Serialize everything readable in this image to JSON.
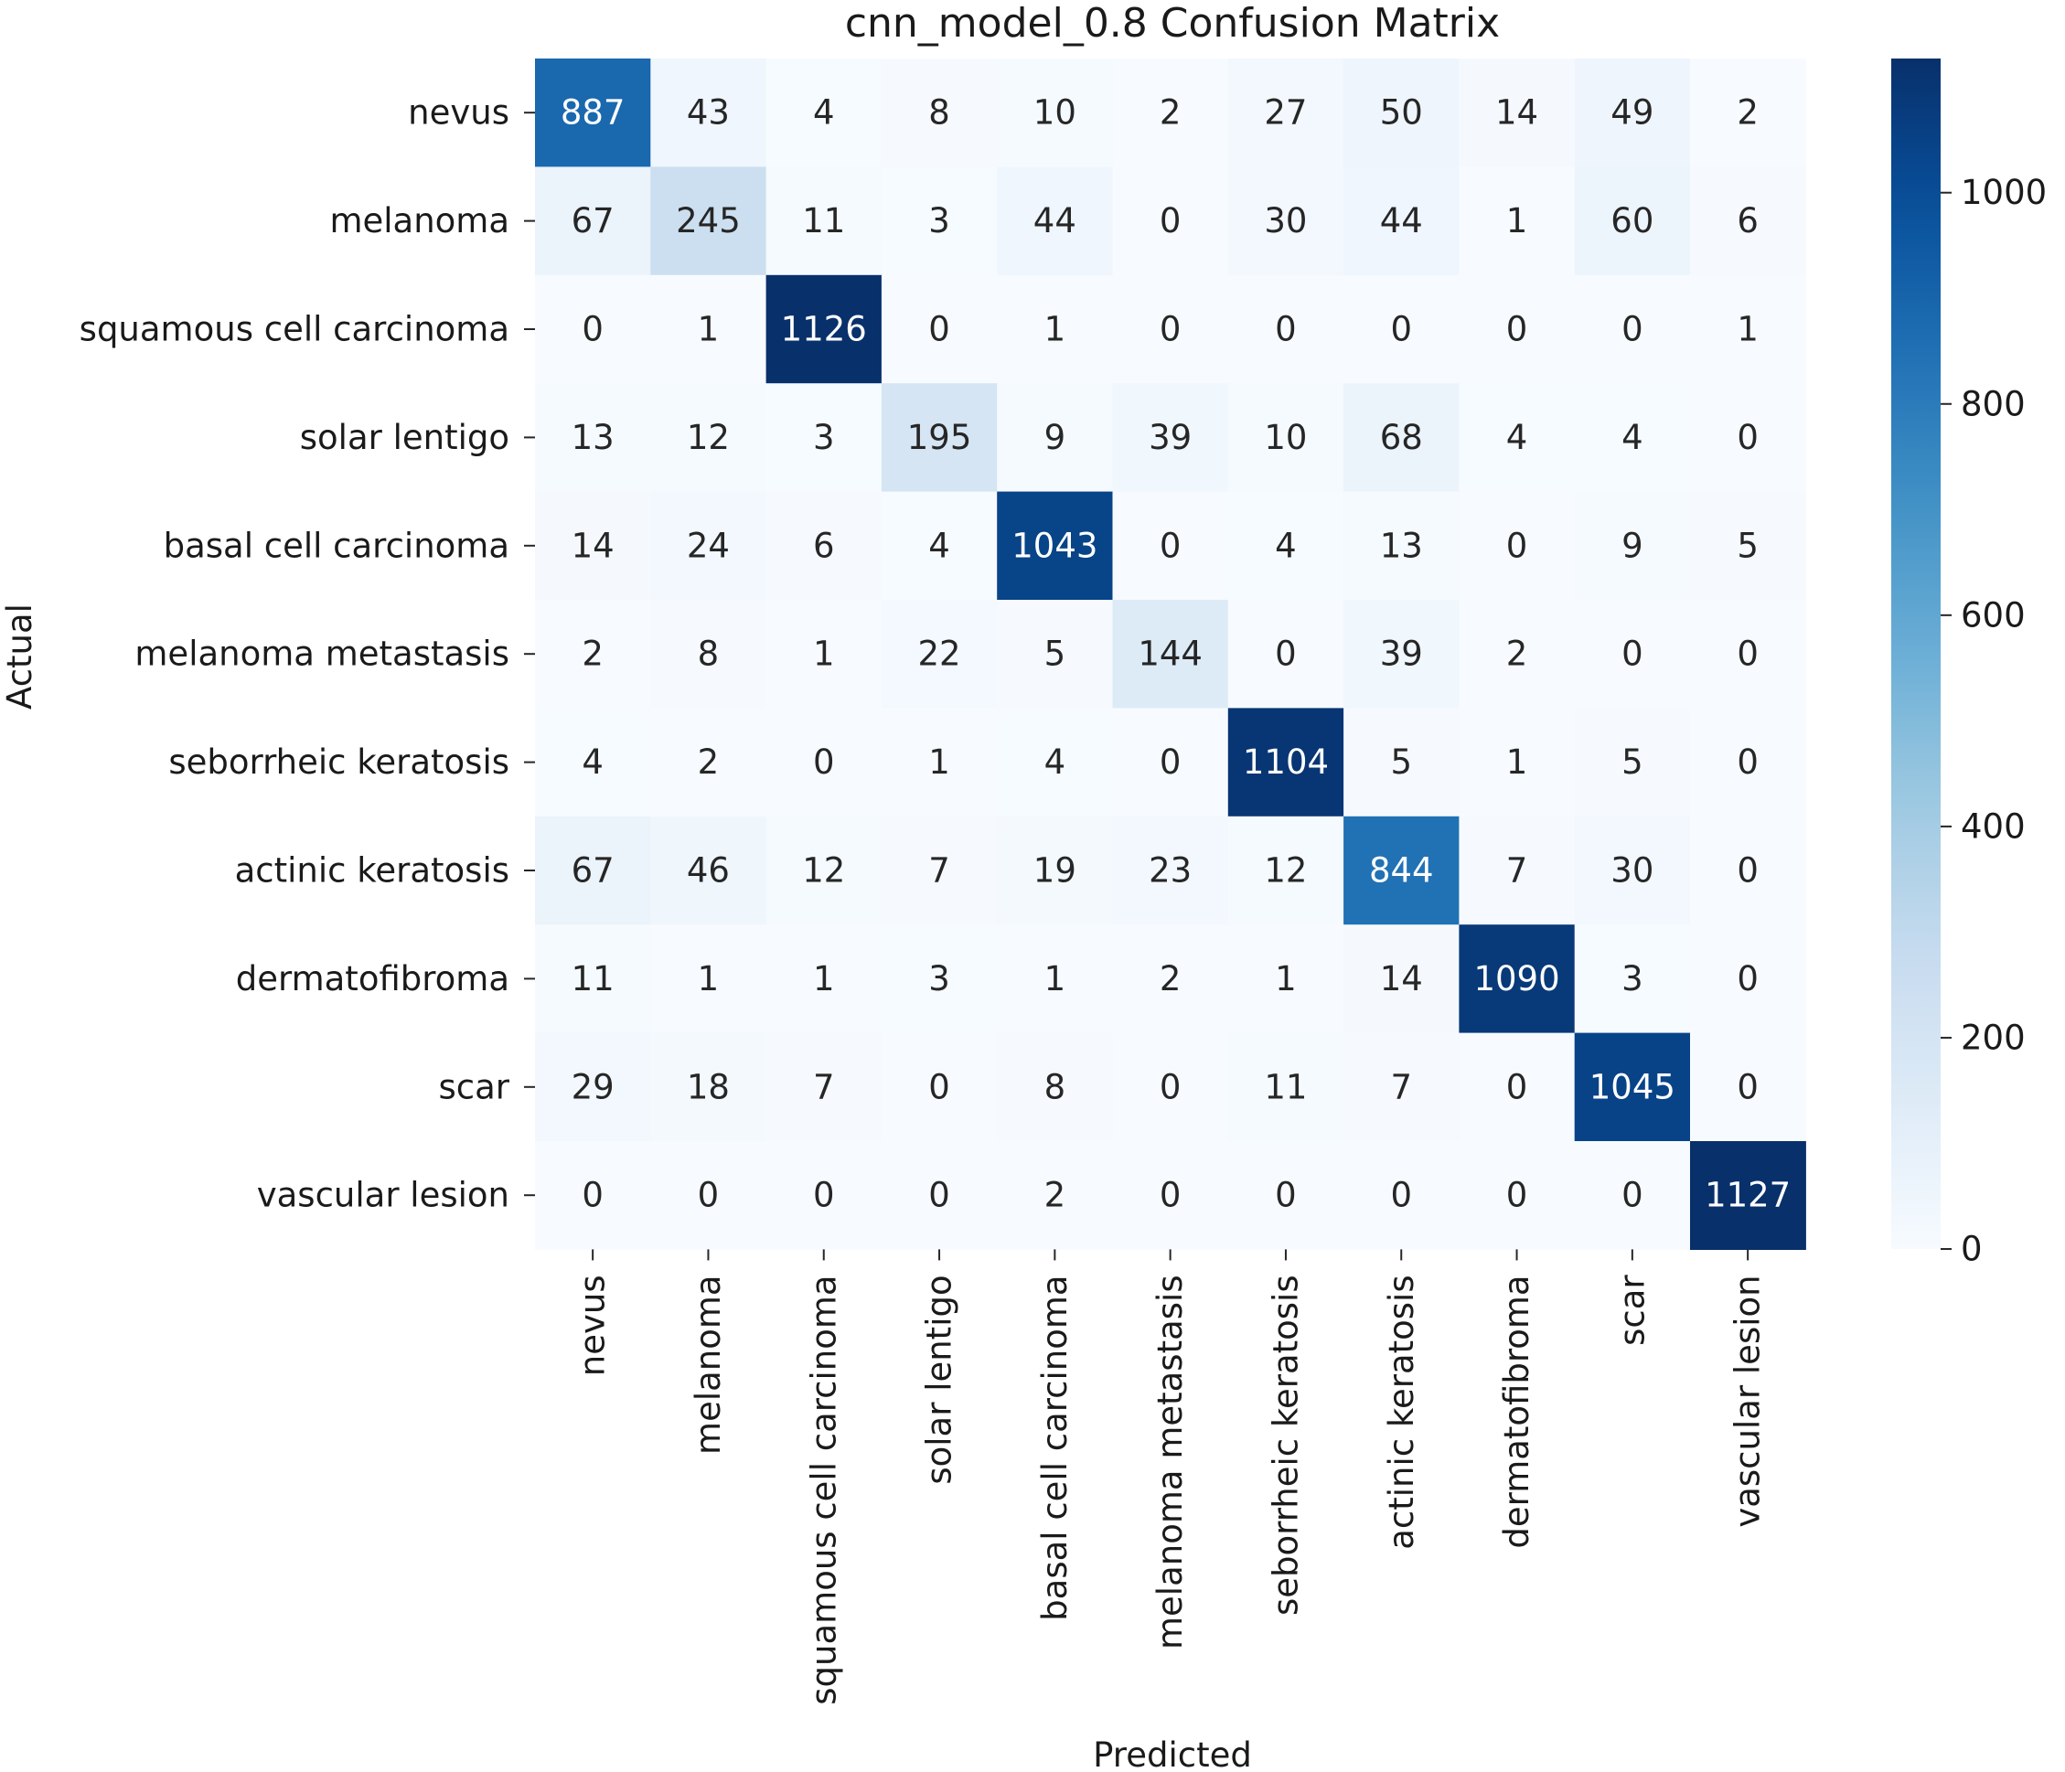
{
  "chart_data": {
    "type": "heatmap",
    "title": "cnn_model_0.8 Confusion Matrix",
    "xlabel": "Predicted",
    "ylabel": "Actual",
    "row_labels": [
      "nevus",
      "melanoma",
      "squamous cell carcinoma",
      "solar lentigo",
      "basal cell carcinoma",
      "melanoma metastasis",
      "seborrheic keratosis",
      "actinic keratosis",
      "dermatofibroma",
      "scar",
      "vascular lesion"
    ],
    "col_labels": [
      "nevus",
      "melanoma",
      "squamous cell carcinoma",
      "solar lentigo",
      "basal cell carcinoma",
      "melanoma metastasis",
      "seborrheic keratosis",
      "actinic keratosis",
      "dermatofibroma",
      "scar",
      "vascular lesion"
    ],
    "values": [
      [
        887,
        43,
        4,
        8,
        10,
        2,
        27,
        50,
        14,
        49,
        2
      ],
      [
        67,
        245,
        11,
        3,
        44,
        0,
        30,
        44,
        1,
        60,
        6
      ],
      [
        0,
        1,
        1126,
        0,
        1,
        0,
        0,
        0,
        0,
        0,
        1
      ],
      [
        13,
        12,
        3,
        195,
        9,
        39,
        10,
        68,
        4,
        4,
        0
      ],
      [
        14,
        24,
        6,
        4,
        1043,
        0,
        4,
        13,
        0,
        9,
        5
      ],
      [
        2,
        8,
        1,
        22,
        5,
        144,
        0,
        39,
        2,
        0,
        0
      ],
      [
        4,
        2,
        0,
        1,
        4,
        0,
        1104,
        5,
        1,
        5,
        0
      ],
      [
        67,
        46,
        12,
        7,
        19,
        23,
        12,
        844,
        7,
        30,
        0
      ],
      [
        11,
        1,
        1,
        3,
        1,
        2,
        1,
        14,
        1090,
        3,
        0
      ],
      [
        29,
        18,
        7,
        0,
        8,
        0,
        11,
        7,
        0,
        1045,
        0
      ],
      [
        0,
        0,
        0,
        0,
        2,
        0,
        0,
        0,
        0,
        0,
        1127
      ]
    ],
    "colormap": "Blues",
    "vmin": 0,
    "vmax": 1127,
    "colorbar_ticks": [
      0,
      200,
      400,
      600,
      800,
      1000
    ],
    "grid": false
  }
}
